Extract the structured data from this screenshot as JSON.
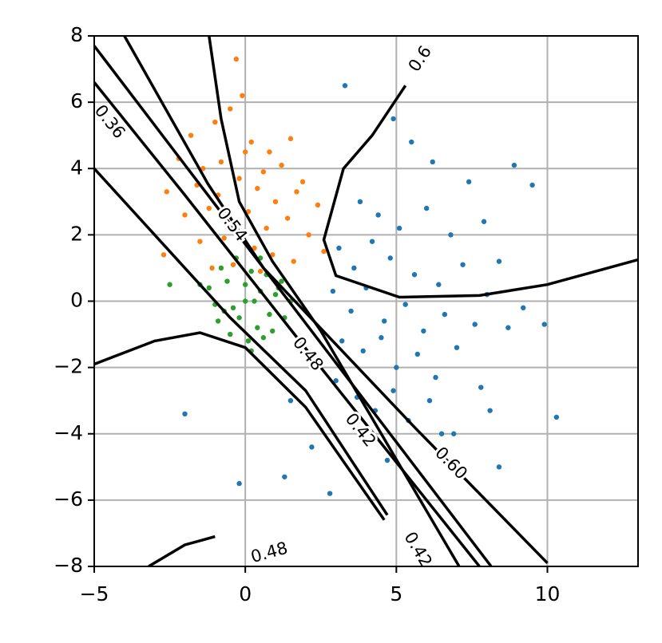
{
  "chart_data": {
    "type": "scatter",
    "xlim": [
      -5,
      13
    ],
    "ylim": [
      -8,
      8
    ],
    "xticks": [
      {
        "value": -5,
        "label": "−5"
      },
      0,
      5,
      10
    ],
    "yticks": [
      {
        "value": -8,
        "label": "−8"
      },
      {
        "value": -6,
        "label": "−6"
      },
      {
        "value": -4,
        "label": "−4"
      },
      {
        "value": -2,
        "label": "−2"
      },
      0,
      2,
      4,
      6,
      8
    ],
    "grid": true,
    "series": [
      {
        "color": "#1f77b4",
        "x": [
          3.3,
          4.9,
          5.5,
          6.2,
          7.4,
          8.9,
          9.5,
          3.8,
          4.4,
          5.1,
          6.0,
          6.8,
          7.9,
          8.4,
          3.1,
          3.6,
          4.2,
          4.8,
          5.6,
          6.4,
          7.2,
          8.0,
          9.2,
          2.9,
          3.5,
          4.0,
          4.6,
          5.3,
          5.9,
          6.6,
          7.6,
          8.7,
          3.2,
          3.9,
          4.5,
          5.0,
          5.7,
          6.3,
          7.0,
          7.8,
          9.9,
          2.4,
          3.0,
          3.7,
          4.3,
          4.9,
          5.4,
          6.1,
          6.9,
          8.1,
          10.3,
          1.5,
          2.2,
          1.3,
          2.8,
          4.7,
          6.5,
          8.4,
          -2.0,
          -0.2
        ],
        "y": [
          6.5,
          5.5,
          4.8,
          4.2,
          3.6,
          4.1,
          3.5,
          3.0,
          2.6,
          2.2,
          2.8,
          2.0,
          2.4,
          1.2,
          1.6,
          1.0,
          1.8,
          1.3,
          0.8,
          0.5,
          1.1,
          0.2,
          -0.2,
          0.3,
          -0.3,
          0.4,
          -0.6,
          -0.1,
          -0.9,
          -0.4,
          -0.7,
          -0.8,
          -1.2,
          -1.5,
          -1.1,
          -2.0,
          -1.6,
          -2.3,
          -1.4,
          -2.6,
          -0.7,
          -1.8,
          -2.4,
          -2.9,
          -3.3,
          -2.7,
          -3.6,
          -3.0,
          -4.0,
          -3.3,
          -3.5,
          -3.0,
          -4.4,
          -5.3,
          -5.8,
          -4.8,
          -4.0,
          -5.0,
          -3.4,
          -5.5
        ]
      },
      {
        "color": "#ff7f0e",
        "x": [
          -0.3,
          -1.8,
          -1.0,
          -0.5,
          0.2,
          0.8,
          1.5,
          -2.2,
          -1.4,
          -0.8,
          0.0,
          0.6,
          1.2,
          1.9,
          -2.6,
          -1.6,
          -0.9,
          -0.2,
          0.4,
          1.0,
          1.7,
          2.4,
          -2.0,
          -1.2,
          -0.6,
          0.1,
          0.7,
          1.4,
          2.1,
          -1.5,
          -0.7,
          0.3,
          0.9,
          1.6,
          -2.7,
          -1.1,
          -0.4,
          0.5,
          2.6,
          -0.1
        ],
        "y": [
          7.3,
          5.0,
          5.4,
          5.8,
          4.8,
          4.5,
          4.9,
          4.3,
          4.0,
          4.2,
          4.5,
          3.9,
          4.1,
          3.6,
          3.3,
          3.5,
          3.2,
          3.7,
          3.4,
          3.0,
          3.3,
          2.9,
          2.6,
          2.8,
          2.4,
          2.7,
          2.2,
          2.5,
          2.0,
          1.8,
          1.9,
          1.6,
          1.4,
          1.2,
          1.4,
          1.0,
          1.1,
          0.9,
          1.5,
          6.2
        ]
      },
      {
        "color": "#2ca02c",
        "x": [
          -0.8,
          -0.3,
          0.2,
          0.7,
          1.2,
          -1.2,
          -0.6,
          0.0,
          0.5,
          1.0,
          1.5,
          -1.0,
          -0.4,
          0.3,
          0.8,
          -0.9,
          -0.2,
          0.4,
          0.9,
          -0.5,
          0.1,
          0.6,
          -1.5,
          1.3,
          -2.5,
          0.2,
          0.0,
          -0.7,
          1.1,
          0.5
        ],
        "y": [
          1.0,
          1.3,
          0.9,
          0.8,
          0.6,
          0.4,
          0.6,
          0.5,
          0.3,
          0.2,
          0.0,
          -0.1,
          -0.2,
          0.0,
          -0.4,
          -0.6,
          -0.5,
          -0.8,
          -0.9,
          -1.0,
          -1.2,
          -1.1,
          0.5,
          -0.5,
          0.5,
          -1.5,
          0.0,
          -0.3,
          0.4,
          1.3
        ]
      }
    ],
    "contour_color": "#000000",
    "contours": [
      {
        "x": [
          -5,
          -0.45,
          8.14
        ],
        "y": [
          7.7,
          2.26,
          -8
        ]
      },
      {
        "x": [
          -5,
          -2,
          2.06,
          7.75
        ],
        "y": [
          6.6,
          3.2,
          -1.5,
          -8
        ]
      },
      {
        "x": [
          -5,
          -0.5,
          2,
          4.7
        ],
        "y": [
          4.0,
          -0.5,
          -2.7,
          -6.45
        ]
      },
      {
        "x": [
          -4,
          -1.24,
          0.6,
          5.6,
          10
        ],
        "y": [
          8,
          3.54,
          1.0,
          -3.8,
          -7.9
        ]
      },
      {
        "x": [
          -1.2,
          -0.8,
          -0.2,
          0.9,
          2.5,
          7.08
        ],
        "y": [
          8,
          5.5,
          3.0,
          1.2,
          -0.9,
          -8
        ]
      },
      {
        "x": [
          5.3,
          4.2,
          3.25,
          2.6,
          3.0,
          5.1,
          7.75,
          10,
          13
        ],
        "y": [
          6.5,
          5.0,
          4.0,
          1.85,
          0.77,
          0.12,
          0.17,
          0.5,
          1.25
        ]
      },
      {
        "x": [
          -5,
          -3,
          -1.5,
          0,
          2,
          4.6
        ],
        "y": [
          -1.9,
          -1.2,
          -0.95,
          -1.4,
          -3.2,
          -6.6
        ]
      },
      {
        "x": [
          -3.2,
          -2,
          -1
        ],
        "y": [
          -8,
          -7.35,
          -7.1
        ]
      }
    ],
    "contour_labels": [
      {
        "text": "0.36",
        "x": -4.5,
        "y": 5.4
      },
      {
        "text": "0.54",
        "x": -0.45,
        "y": 2.3
      },
      {
        "text": "0.48",
        "x": 2.06,
        "y": -1.6
      },
      {
        "text": "0.42",
        "x": 3.8,
        "y": -3.9
      },
      {
        "text": "0.60",
        "x": 6.8,
        "y": -4.9
      },
      {
        "text": "0.6",
        "x": 5.8,
        "y": 7.3
      },
      {
        "text": "0.42",
        "x": 5.7,
        "y": -7.5
      },
      {
        "text": "0.48",
        "x": 0.8,
        "y": -7.6
      }
    ]
  }
}
